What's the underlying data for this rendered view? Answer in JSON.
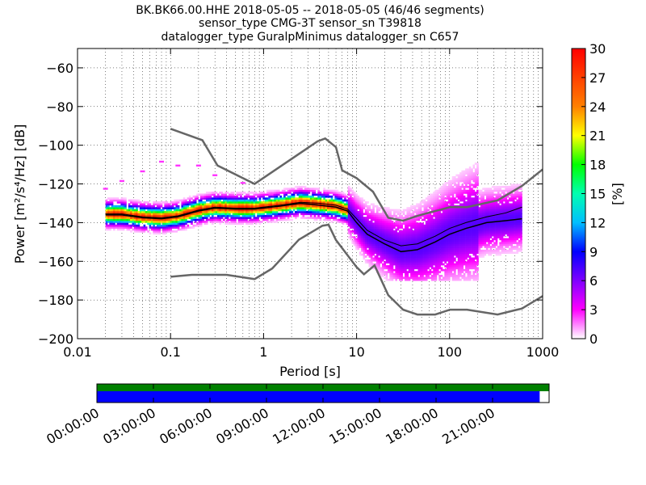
{
  "chart_data": {
    "type": "heatmap",
    "title_lines": [
      "BK.BK66.00.HHE   2018-05-05 -- 2018-05-05  (46/46 segments)",
      "sensor_type CMG-3T sensor_sn T39818",
      "datalogger_type GuralpMinimus datalogger_sn C657"
    ],
    "xlabel": "Period [s]",
    "ylabel": "Power [m²/s⁴/Hz] [dB]",
    "xscale": "log",
    "xlim": [
      0.01,
      1000
    ],
    "ylim": [
      -200,
      -50
    ],
    "x_ticks": [
      {
        "value": 0.01,
        "label": "0.01"
      },
      {
        "value": 0.1,
        "label": "0.1"
      },
      {
        "value": 1,
        "label": "1"
      },
      {
        "value": 10,
        "label": "10"
      },
      {
        "value": 100,
        "label": "100"
      },
      {
        "value": 1000,
        "label": "1000"
      }
    ],
    "y_ticks": [
      {
        "value": -60,
        "label": "−60"
      },
      {
        "value": -80,
        "label": "−80"
      },
      {
        "value": -100,
        "label": "−100"
      },
      {
        "value": -120,
        "label": "−120"
      },
      {
        "value": -140,
        "label": "−140"
      },
      {
        "value": -160,
        "label": "−160"
      },
      {
        "value": -180,
        "label": "−180"
      },
      {
        "value": -200,
        "label": "−200"
      }
    ],
    "grid": true,
    "colorbar": {
      "label": "[%]",
      "range": [
        0,
        30
      ],
      "ticks": [
        {
          "value": 0,
          "label": "0"
        },
        {
          "value": 3,
          "label": "3"
        },
        {
          "value": 6,
          "label": "6"
        },
        {
          "value": 9,
          "label": "9"
        },
        {
          "value": 12,
          "label": "12"
        },
        {
          "value": 15,
          "label": "15"
        },
        {
          "value": 18,
          "label": "18"
        },
        {
          "value": 21,
          "label": "21"
        },
        {
          "value": 24,
          "label": "24"
        },
        {
          "value": 27,
          "label": "27"
        },
        {
          "value": 30,
          "label": "30"
        }
      ],
      "colors": [
        "#ffffff",
        "#ff00ff",
        "#7f00ff",
        "#0000ff",
        "#00bfff",
        "#00ffb0",
        "#00ff00",
        "#ffff00",
        "#ff8000",
        "#ff0000"
      ]
    },
    "noise_models": [
      {
        "points": [
          [
            0.1,
            -91.5
          ],
          [
            0.22,
            -97.4
          ],
          [
            0.32,
            -110.5
          ],
          [
            0.8,
            -120
          ],
          [
            3.8,
            -98
          ],
          [
            4.6,
            -96.5
          ],
          [
            6.0,
            -101
          ],
          [
            7.0,
            -113
          ],
          [
            10,
            -117
          ],
          [
            15,
            -124
          ],
          [
            21.9,
            -137.5
          ],
          [
            31.6,
            -139
          ],
          [
            45,
            -136.5
          ],
          [
            70,
            -134
          ],
          [
            101,
            -132
          ],
          [
            154,
            -132
          ],
          [
            328,
            -128.5
          ],
          [
            600,
            -121
          ],
          [
            1000,
            -112.5
          ]
        ]
      },
      {
        "points": [
          [
            0.1,
            -168
          ],
          [
            0.17,
            -167
          ],
          [
            0.4,
            -167
          ],
          [
            0.8,
            -169.2
          ],
          [
            1.24,
            -163.7
          ],
          [
            2.4,
            -148.8
          ],
          [
            4.3,
            -141.6
          ],
          [
            5.0,
            -141.1
          ],
          [
            6.0,
            -149
          ],
          [
            10,
            -163
          ],
          [
            12,
            -166.7
          ],
          [
            15.6,
            -162.1
          ],
          [
            21.9,
            -177.5
          ],
          [
            31.6,
            -185
          ],
          [
            45,
            -187.5
          ],
          [
            70,
            -187.5
          ],
          [
            101,
            -185
          ],
          [
            154,
            -185
          ],
          [
            328,
            -187.5
          ],
          [
            600,
            -184.4
          ],
          [
            1000,
            -178
          ]
        ]
      }
    ],
    "mode_curve": [
      [
        0.02,
        -136
      ],
      [
        0.03,
        -136
      ],
      [
        0.05,
        -137.5
      ],
      [
        0.08,
        -138
      ],
      [
        0.12,
        -137
      ],
      [
        0.2,
        -134
      ],
      [
        0.3,
        -132.5
      ],
      [
        0.5,
        -133
      ],
      [
        0.8,
        -133
      ],
      [
        1.5,
        -131.5
      ],
      [
        2.5,
        -130
      ],
      [
        4,
        -131
      ],
      [
        6,
        -132
      ],
      [
        8,
        -134
      ],
      [
        10,
        -140
      ],
      [
        13,
        -146
      ],
      [
        20,
        -151
      ],
      [
        30,
        -155
      ],
      [
        45,
        -154
      ],
      [
        70,
        -150
      ],
      [
        100,
        -146
      ],
      [
        150,
        -143
      ],
      [
        250,
        -140
      ],
      [
        400,
        -139
      ],
      [
        600,
        -138
      ]
    ],
    "mean_curve": [
      [
        0.02,
        -135.5
      ],
      [
        0.03,
        -135.5
      ],
      [
        0.05,
        -137
      ],
      [
        0.08,
        -137.5
      ],
      [
        0.12,
        -136.5
      ],
      [
        0.2,
        -133.5
      ],
      [
        0.3,
        -132
      ],
      [
        0.5,
        -132.5
      ],
      [
        0.8,
        -132.5
      ],
      [
        1.5,
        -131
      ],
      [
        2.5,
        -129.5
      ],
      [
        4,
        -130
      ],
      [
        6,
        -131
      ],
      [
        8,
        -133
      ],
      [
        10,
        -138
      ],
      [
        13,
        -144
      ],
      [
        20,
        -149
      ],
      [
        30,
        -152
      ],
      [
        45,
        -151
      ],
      [
        70,
        -147
      ],
      [
        100,
        -143
      ],
      [
        150,
        -140
      ],
      [
        250,
        -137
      ],
      [
        400,
        -135
      ],
      [
        600,
        -132
      ]
    ]
  },
  "time_axis": {
    "ticks": [
      "00:00:00",
      "03:00:00",
      "06:00:00",
      "09:00:00",
      "12:00:00",
      "15:00:00",
      "18:00:00",
      "21:00:00"
    ],
    "range_hours": [
      0,
      24
    ],
    "data_coverage_hours": [
      0,
      24
    ],
    "segments_coverage_hours": [
      0,
      23.5
    ],
    "data_color": "#008000",
    "segments_color": "#0000ff"
  }
}
